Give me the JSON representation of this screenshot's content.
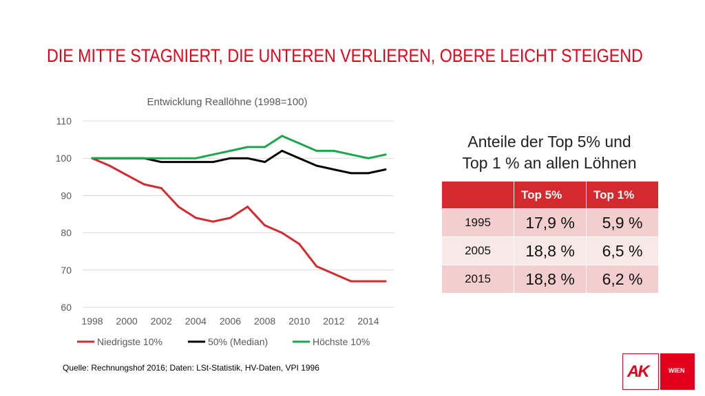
{
  "slide": {
    "title": "DIE MITTE STAGNIERT, DIE UNTEREN VERLIEREN, OBERE LEICHT STEIGEND",
    "source": "Quelle: Rechnungshof 2016; Daten: LSt-Statistik, HV-Daten, VPI 1996"
  },
  "chart_data": {
    "type": "line",
    "title": "Entwicklung Reallöhne (1998=100)",
    "xlabel": "",
    "ylabel": "",
    "x": [
      1998,
      1999,
      2000,
      2001,
      2002,
      2003,
      2004,
      2005,
      2006,
      2007,
      2008,
      2009,
      2010,
      2011,
      2012,
      2013,
      2014,
      2015
    ],
    "xticks": [
      1998,
      2000,
      2002,
      2004,
      2006,
      2008,
      2010,
      2012,
      2014
    ],
    "yticks": [
      60,
      70,
      80,
      90,
      100,
      110
    ],
    "ylim": [
      60,
      110
    ],
    "grid": true,
    "legend_position": "bottom",
    "series": [
      {
        "name": "Niedrigste 10%",
        "color": "#d42a2f",
        "values": [
          100,
          98,
          95.5,
          93,
          92,
          87,
          84,
          83,
          84,
          87,
          82,
          80,
          77,
          71,
          69,
          67,
          67,
          67
        ]
      },
      {
        "name": "50% (Median)",
        "color": "#000000",
        "values": [
          100,
          100,
          100,
          100,
          99,
          99,
          99,
          99,
          100,
          100,
          99,
          102,
          100,
          98,
          97,
          96,
          96,
          97
        ]
      },
      {
        "name": "Höchste 10%",
        "color": "#1aa64a",
        "values": [
          100,
          100,
          100,
          100,
          100,
          100,
          100,
          101,
          102,
          103,
          103,
          106,
          104,
          102,
          102,
          101,
          100,
          101
        ]
      }
    ]
  },
  "table": {
    "heading_line1": "Anteile der Top 5% und",
    "heading_line2": "Top 1 % an allen Löhnen",
    "col_header_empty": "",
    "col_header_top5": "Top 5%",
    "col_header_top1": "Top 1%",
    "rows": [
      {
        "year": "1995",
        "top5": "17,9 %",
        "top1": "5,9 %"
      },
      {
        "year": "2005",
        "top5": "18,8 %",
        "top1": "6,5 %"
      },
      {
        "year": "2015",
        "top5": "18,8 %",
        "top1": "6,2 %"
      }
    ]
  },
  "logo": {
    "left": "AK",
    "right": "WIEN"
  }
}
